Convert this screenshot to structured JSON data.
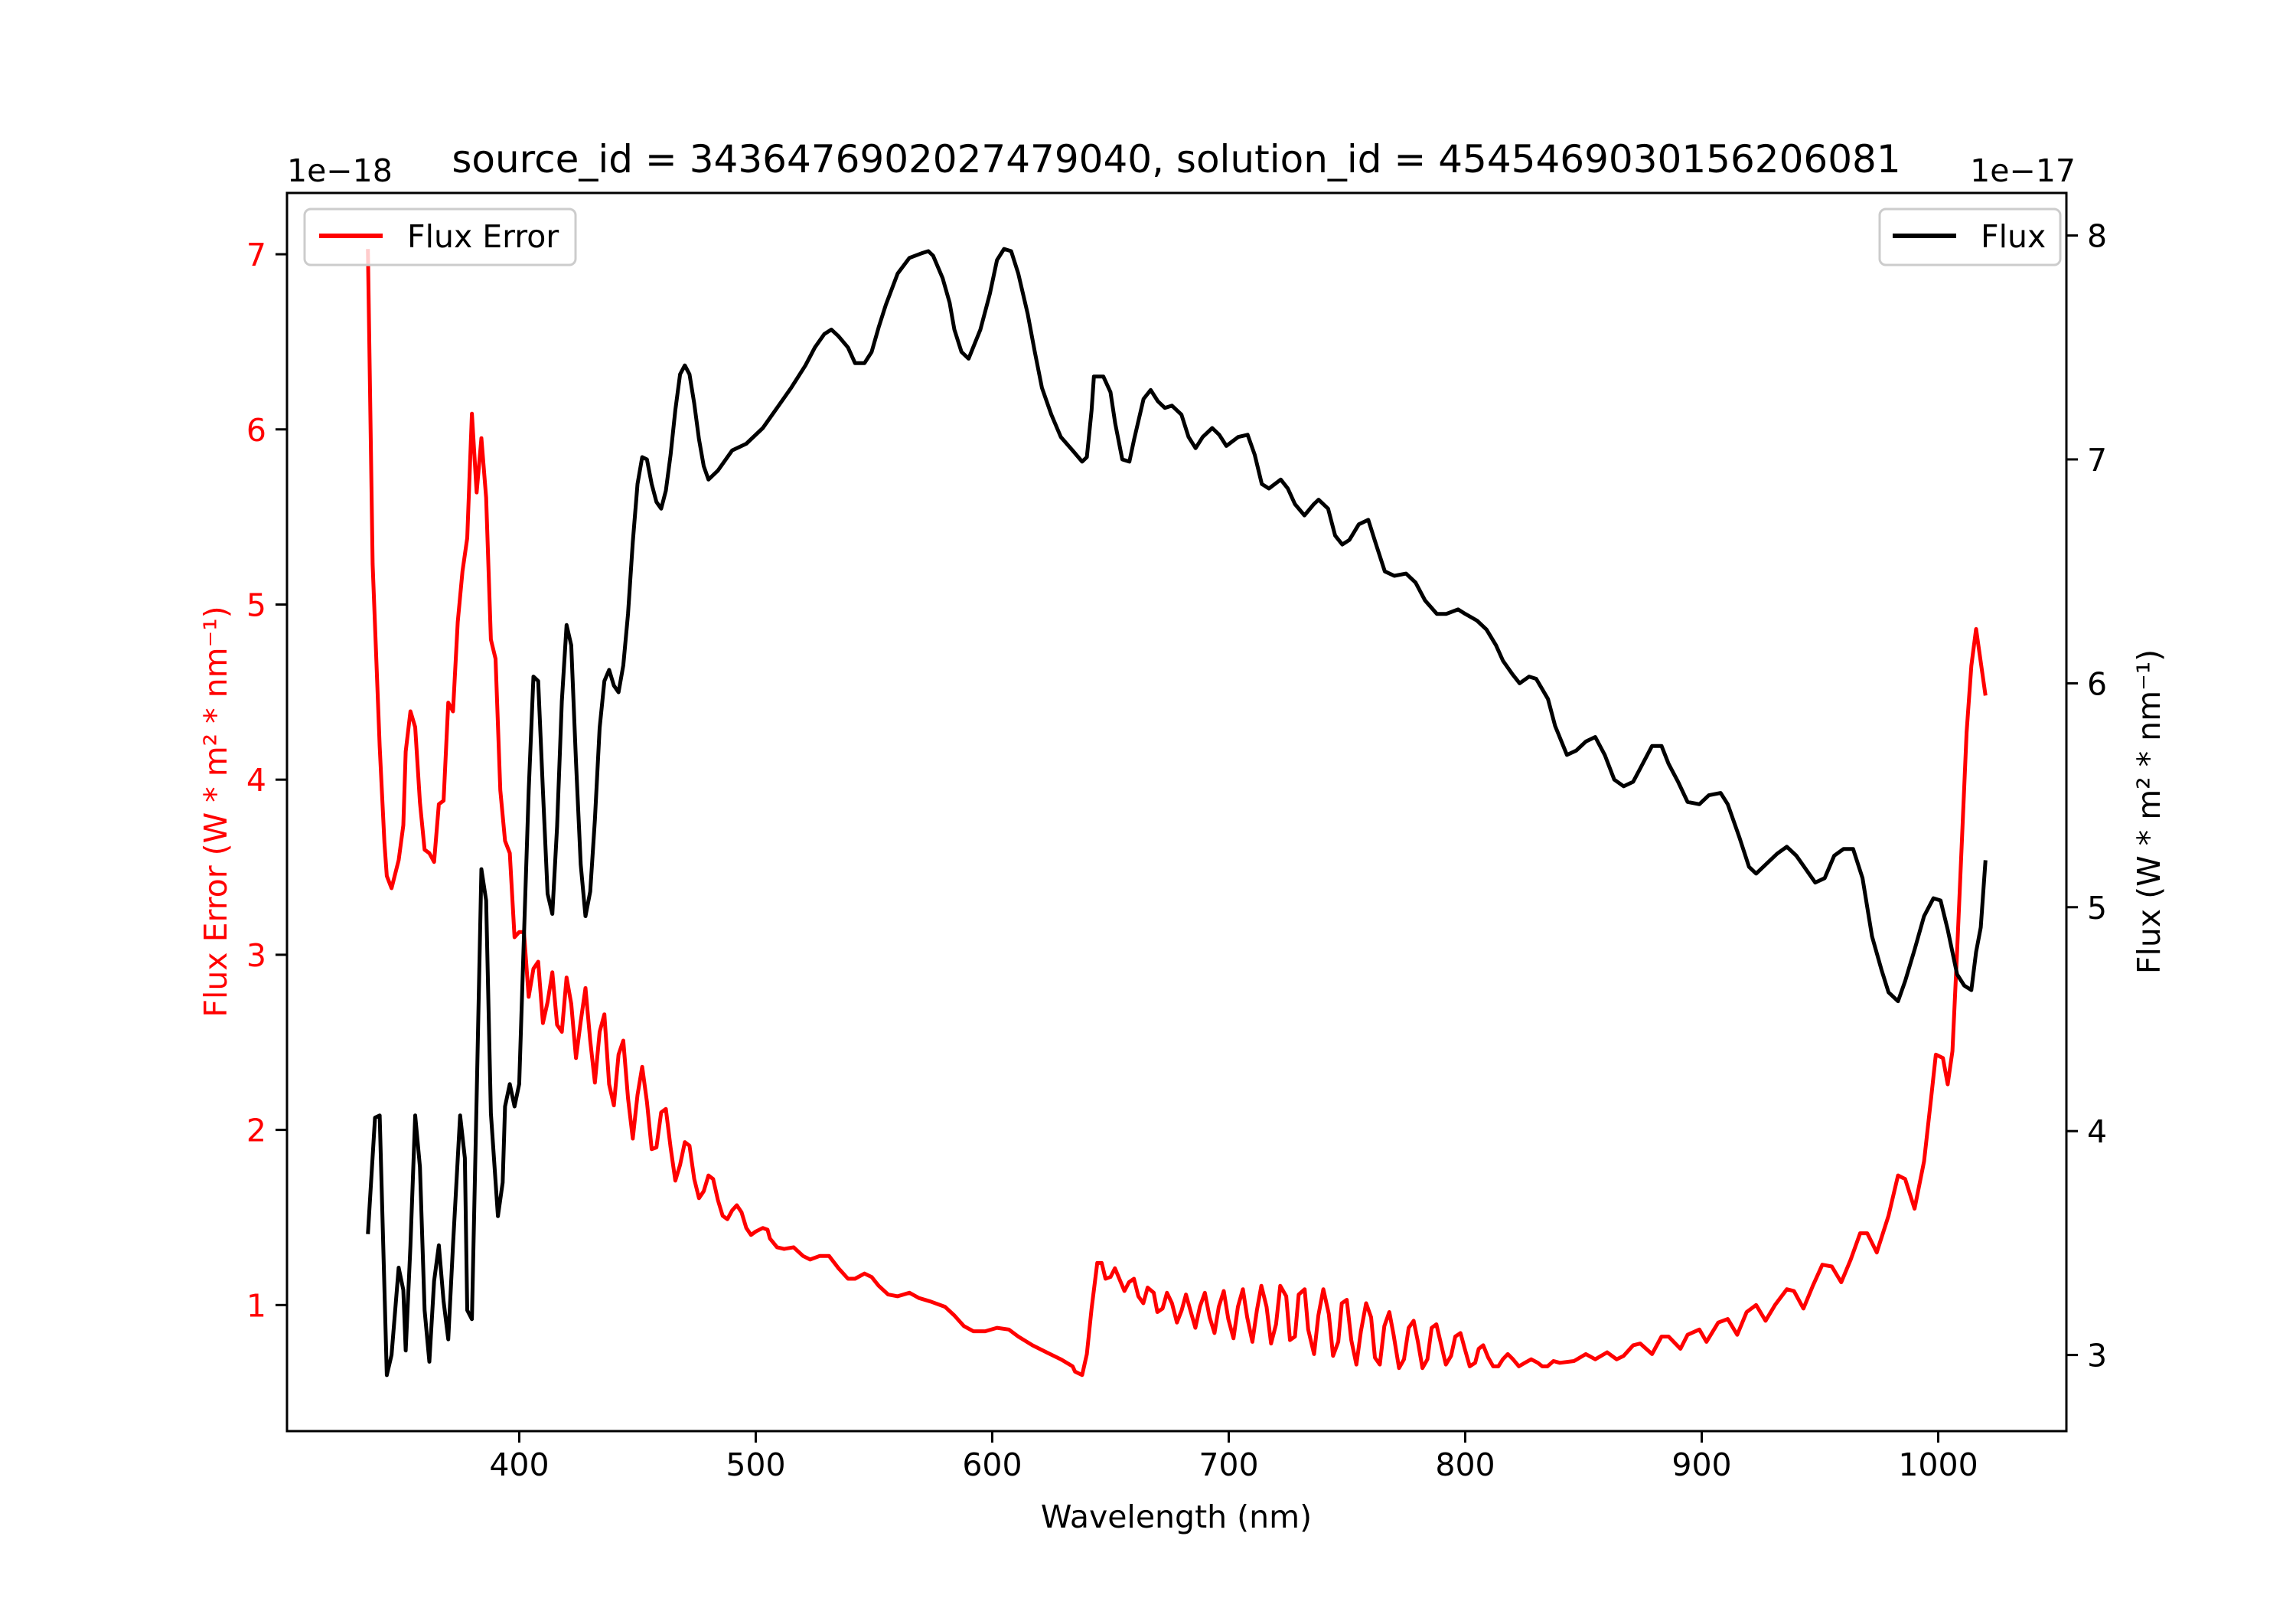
{
  "chart_data": {
    "type": "line",
    "title": "source_id = 3436476902027479040, solution_id = 4545469030156206081",
    "xlabel": "Wavelength (nm)",
    "xlim": [
      301.8,
      1054.2
    ],
    "xticks": [
      400,
      500,
      600,
      700,
      800,
      900,
      1000
    ],
    "xtick_labels": [
      "400",
      "500",
      "600",
      "700",
      "800",
      "900",
      "1000"
    ],
    "grid": false,
    "axes": {
      "left": {
        "ylabel": "Flux Error (W * m² * nm⁻¹)",
        "offset_text": "1e−18",
        "ylim": [
          0.28,
          7.35
        ],
        "yticks": [
          1,
          2,
          3,
          4,
          5,
          6,
          7
        ],
        "ytick_labels": [
          "1",
          "2",
          "3",
          "4",
          "5",
          "6",
          "7"
        ],
        "color": "#ff0000"
      },
      "right": {
        "ylabel": "Flux (W * m² * nm⁻¹)",
        "offset_text": "1e−17",
        "ylim": [
          2.66,
          8.19
        ],
        "yticks": [
          3,
          4,
          5,
          6,
          7,
          8
        ],
        "ytick_labels": [
          "3",
          "4",
          "5",
          "6",
          "7",
          "8"
        ],
        "color": "#000000"
      }
    },
    "series": [
      {
        "name": "Flux Error",
        "axis": "left",
        "color": "#ff0000",
        "legend": "upper left",
        "x": [
          336,
          338,
          341,
          343,
          344,
          346,
          349,
          351,
          352,
          354,
          356,
          358,
          360,
          362,
          364,
          366,
          368,
          370,
          372,
          374,
          376,
          378,
          380,
          382,
          384,
          386,
          388,
          390,
          392,
          394,
          396,
          398,
          400,
          402,
          404,
          406,
          408,
          410,
          412,
          414,
          416,
          418,
          420,
          422,
          424,
          426,
          428,
          430,
          432,
          434,
          436,
          438,
          440,
          442,
          444,
          446,
          448,
          450,
          452,
          454,
          456,
          458,
          460,
          462,
          464,
          466,
          468,
          470,
          472,
          474,
          476,
          478,
          480,
          482,
          484,
          486,
          488,
          490,
          492,
          494,
          496,
          498,
          500,
          503,
          505,
          506,
          509,
          512,
          516,
          520,
          523,
          527,
          531,
          535,
          539,
          542,
          546,
          549,
          552,
          556,
          560,
          565,
          569,
          574,
          580,
          584,
          588,
          592,
          597,
          602,
          607,
          611,
          617,
          623,
          629,
          634,
          635,
          638,
          640,
          642,
          644.4,
          646.3,
          647.9,
          650,
          651.9,
          655.9,
          657.8,
          659.9,
          661.8,
          663.9,
          665.7,
          668.3,
          669.8,
          672,
          673.9,
          676,
          678.1,
          680.1,
          681.9,
          684,
          685.9,
          687.8,
          689.9,
          691.9,
          694,
          695.8,
          697.9,
          699.8,
          702,
          703.9,
          706,
          707.8,
          710,
          711.9,
          713.8,
          716,
          717.9,
          720,
          721.8,
          724.3,
          725.9,
          728,
          729.6,
          732.1,
          733.6,
          736.1,
          737.9,
          740,
          742.3,
          744.1,
          746.3,
          747.8,
          749.9,
          751.8,
          754,
          755.9,
          758.1,
          760.2,
          761.8,
          763.9,
          765.8,
          767.9,
          769.7,
          772,
          774.1,
          776.1,
          778.2,
          780,
          781.9,
          784,
          785.8,
          787.8,
          789.7,
          791.8,
          794,
          795.8,
          798,
          799.8,
          801.9,
          804.2,
          805.7,
          807.6,
          809.7,
          811.8,
          814,
          815.9,
          818,
          820.2,
          822.7,
          825.2,
          827.9,
          830.7,
          832.6,
          834.8,
          837.3,
          840,
          846,
          851,
          855,
          860,
          864,
          867,
          871,
          874,
          879,
          883,
          886,
          891,
          894,
          899,
          902,
          907,
          911,
          915,
          919,
          923,
          927,
          931,
          936,
          939,
          943,
          947,
          951,
          955,
          959,
          963,
          967,
          970,
          974,
          979,
          983,
          986,
          990,
          994,
          997,
          999,
          1002,
          1004,
          1006,
          1008,
          1012,
          1014,
          1016,
          1020
        ],
        "y": [
          7.03,
          5.23,
          4.19,
          3.64,
          3.45,
          3.38,
          3.54,
          3.74,
          4.16,
          4.39,
          4.3,
          3.87,
          3.6,
          3.58,
          3.53,
          3.86,
          3.88,
          4.44,
          4.39,
          4.9,
          5.19,
          5.38,
          6.09,
          5.64,
          5.95,
          5.61,
          4.8,
          4.69,
          3.94,
          3.65,
          3.58,
          3.1,
          3.13,
          3.13,
          2.76,
          2.92,
          2.96,
          2.61,
          2.73,
          2.9,
          2.6,
          2.56,
          2.87,
          2.72,
          2.41,
          2.62,
          2.81,
          2.51,
          2.27,
          2.56,
          2.66,
          2.26,
          2.14,
          2.43,
          2.51,
          2.18,
          1.95,
          2.2,
          2.36,
          2.16,
          1.89,
          1.9,
          2.1,
          2.12,
          1.9,
          1.71,
          1.8,
          1.93,
          1.91,
          1.72,
          1.61,
          1.65,
          1.74,
          1.72,
          1.6,
          1.51,
          1.49,
          1.54,
          1.57,
          1.53,
          1.44,
          1.4,
          1.42,
          1.44,
          1.43,
          1.38,
          1.33,
          1.32,
          1.33,
          1.28,
          1.26,
          1.28,
          1.28,
          1.21,
          1.15,
          1.15,
          1.18,
          1.16,
          1.11,
          1.06,
          1.05,
          1.07,
          1.04,
          1.02,
          0.99,
          0.94,
          0.88,
          0.85,
          0.85,
          0.87,
          0.86,
          0.82,
          0.77,
          0.73,
          0.69,
          0.65,
          0.62,
          0.6,
          0.72,
          0.98,
          1.24,
          1.24,
          1.15,
          1.16,
          1.21,
          1.08,
          1.13,
          1.15,
          1.05,
          1.01,
          1.1,
          1.07,
          0.96,
          0.98,
          1.07,
          1.01,
          0.9,
          0.97,
          1.06,
          0.96,
          0.87,
          0.99,
          1.07,
          0.93,
          0.84,
          0.99,
          1.08,
          0.92,
          0.81,
          0.99,
          1.09,
          0.93,
          0.79,
          0.97,
          1.11,
          0.99,
          0.78,
          0.89,
          1.11,
          1.05,
          0.8,
          0.82,
          1.06,
          1.09,
          0.86,
          0.72,
          0.94,
          1.09,
          0.95,
          0.71,
          0.79,
          1.01,
          1.03,
          0.8,
          0.66,
          0.85,
          1.01,
          0.93,
          0.7,
          0.66,
          0.88,
          0.96,
          0.83,
          0.64,
          0.69,
          0.87,
          0.91,
          0.79,
          0.64,
          0.69,
          0.87,
          0.89,
          0.78,
          0.66,
          0.71,
          0.82,
          0.84,
          0.75,
          0.65,
          0.67,
          0.75,
          0.77,
          0.7,
          0.65,
          0.65,
          0.69,
          0.72,
          0.69,
          0.65,
          0.67,
          0.69,
          0.67,
          0.65,
          0.65,
          0.68,
          0.67,
          0.68,
          0.72,
          0.69,
          0.73,
          0.69,
          0.71,
          0.77,
          0.78,
          0.72,
          0.82,
          0.82,
          0.75,
          0.83,
          0.86,
          0.79,
          0.9,
          0.92,
          0.83,
          0.96,
          1.0,
          0.91,
          1.0,
          1.09,
          1.08,
          0.98,
          1.11,
          1.23,
          1.22,
          1.13,
          1.26,
          1.41,
          1.41,
          1.3,
          1.51,
          1.74,
          1.72,
          1.55,
          1.82,
          2.18,
          2.43,
          2.41,
          2.26,
          2.45,
          3.02,
          4.27,
          4.65,
          4.86,
          4.48
        ]
      },
      {
        "name": "Flux",
        "axis": "right",
        "color": "#000000",
        "legend": "upper right",
        "x": [
          336,
          339,
          341,
          344,
          346,
          349,
          351,
          352,
          354,
          356,
          358,
          360,
          362,
          364,
          366,
          368,
          370,
          372,
          375,
          377,
          378,
          380,
          382,
          384,
          386,
          388,
          391,
          393,
          394,
          396,
          398,
          400,
          402,
          404,
          406,
          408,
          410,
          412,
          414,
          416,
          418,
          420,
          422,
          424,
          426,
          428,
          430,
          432,
          434,
          436,
          438,
          440,
          442,
          444,
          446,
          448,
          450,
          452,
          454,
          456,
          458,
          460,
          462,
          464,
          466,
          468,
          470,
          472,
          474,
          476,
          478,
          480,
          484,
          490,
          496,
          503,
          509,
          515,
          521,
          525,
          529,
          532,
          535,
          539,
          542,
          546,
          549,
          552,
          555,
          560,
          565,
          570,
          573,
          575,
          579,
          582,
          584,
          587,
          590,
          595,
          599,
          602,
          605,
          608,
          611,
          615,
          618,
          621,
          625,
          629,
          634,
          638,
          640,
          642,
          643,
          647,
          650,
          652,
          655,
          658,
          660,
          664,
          667,
          670,
          673,
          676,
          680,
          683,
          686,
          689,
          693,
          696,
          699,
          704,
          708,
          711,
          714,
          717,
          722,
          725,
          728,
          732,
          736,
          738,
          742,
          745,
          748,
          751,
          755,
          759,
          762,
          766,
          770,
          775,
          779,
          783,
          788,
          792,
          797,
          800,
          805,
          809,
          813,
          816,
          820,
          823,
          827,
          830,
          835,
          838,
          843,
          847,
          851,
          855,
          859,
          863,
          867,
          871,
          874,
          879,
          883,
          886,
          890,
          894,
          899,
          903,
          908,
          911,
          916,
          920,
          923,
          928,
          932,
          936,
          940,
          944,
          948,
          952,
          956,
          960,
          964,
          968,
          972,
          976,
          979,
          983,
          986,
          990,
          994,
          998,
          1001,
          1004,
          1008,
          1011,
          1014,
          1016,
          1018,
          1020
        ],
        "y": [
          3.54,
          4.06,
          4.07,
          2.91,
          3.0,
          3.39,
          3.29,
          3.02,
          3.49,
          4.07,
          3.84,
          3.2,
          2.97,
          3.33,
          3.49,
          3.24,
          3.07,
          3.49,
          4.07,
          3.88,
          3.2,
          3.16,
          4.15,
          5.17,
          5.03,
          4.08,
          3.62,
          3.77,
          4.11,
          4.21,
          4.11,
          4.21,
          4.87,
          5.52,
          6.03,
          6.01,
          5.52,
          5.06,
          4.97,
          5.36,
          5.92,
          6.26,
          6.17,
          5.65,
          5.19,
          4.96,
          5.07,
          5.39,
          5.8,
          6.01,
          6.06,
          5.99,
          5.96,
          6.08,
          6.31,
          6.63,
          6.89,
          7.01,
          7.0,
          6.89,
          6.81,
          6.78,
          6.86,
          7.02,
          7.22,
          7.38,
          7.42,
          7.38,
          7.25,
          7.09,
          6.97,
          6.91,
          6.95,
          7.04,
          7.07,
          7.14,
          7.23,
          7.32,
          7.42,
          7.5,
          7.56,
          7.58,
          7.55,
          7.5,
          7.43,
          7.43,
          7.48,
          7.59,
          7.69,
          7.83,
          7.9,
          7.92,
          7.93,
          7.91,
          7.81,
          7.7,
          7.58,
          7.48,
          7.45,
          7.58,
          7.74,
          7.89,
          7.94,
          7.93,
          7.83,
          7.65,
          7.48,
          7.32,
          7.2,
          7.1,
          7.04,
          6.99,
          7.01,
          7.22,
          7.37,
          7.37,
          7.3,
          7.16,
          7.0,
          6.99,
          7.09,
          7.27,
          7.31,
          7.26,
          7.23,
          7.24,
          7.2,
          7.1,
          7.05,
          7.1,
          7.14,
          7.11,
          7.06,
          7.1,
          7.11,
          7.02,
          6.89,
          6.87,
          6.91,
          6.87,
          6.8,
          6.75,
          6.8,
          6.82,
          6.78,
          6.66,
          6.62,
          6.64,
          6.71,
          6.73,
          6.63,
          6.5,
          6.48,
          6.49,
          6.45,
          6.37,
          6.31,
          6.31,
          6.33,
          6.31,
          6.28,
          6.24,
          6.17,
          6.1,
          6.04,
          6.0,
          6.03,
          6.02,
          5.93,
          5.81,
          5.68,
          5.7,
          5.74,
          5.76,
          5.68,
          5.57,
          5.54,
          5.56,
          5.62,
          5.72,
          5.72,
          5.64,
          5.56,
          5.47,
          5.46,
          5.5,
          5.51,
          5.46,
          5.31,
          5.18,
          5.15,
          5.2,
          5.24,
          5.27,
          5.23,
          5.17,
          5.11,
          5.13,
          5.23,
          5.26,
          5.26,
          5.13,
          4.87,
          4.72,
          4.62,
          4.58,
          4.67,
          4.81,
          4.96,
          5.04,
          5.03,
          4.9,
          4.7,
          4.65,
          4.63,
          4.8,
          4.91,
          5.21
        ]
      }
    ]
  }
}
